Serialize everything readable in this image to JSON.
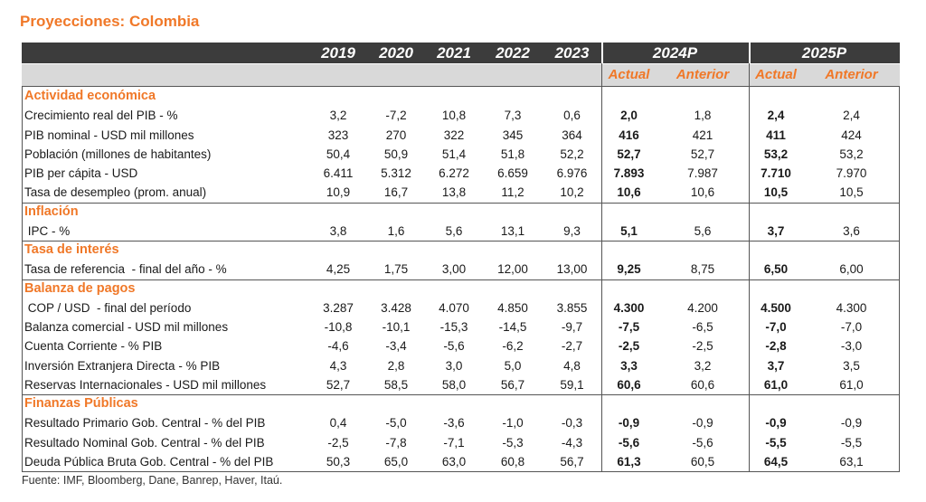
{
  "title": "Proyecciones: Colombia",
  "header": {
    "years": [
      "2019",
      "2020",
      "2021",
      "2022",
      "2023"
    ],
    "projection_years": [
      "2024P",
      "2025P"
    ],
    "subcolumns": [
      "Actual",
      "Anterior",
      "Actual",
      "Anterior"
    ]
  },
  "sections": [
    {
      "title": "Actividad económica",
      "rows": [
        {
          "label": "Crecimiento real del PIB - %",
          "values": [
            "3,2",
            "-7,2",
            "10,8",
            "7,3",
            "0,6",
            "2,0",
            "1,8",
            "2,4",
            "2,4"
          ]
        },
        {
          "label": "PIB nominal - USD mil millones",
          "values": [
            "323",
            "270",
            "322",
            "345",
            "364",
            "416",
            "421",
            "411",
            "424"
          ]
        },
        {
          "label": "Población (millones de habitantes)",
          "values": [
            "50,4",
            "50,9",
            "51,4",
            "51,8",
            "52,2",
            "52,7",
            "52,7",
            "53,2",
            "53,2"
          ]
        },
        {
          "label": "PIB per cápita - USD",
          "values": [
            "6.411",
            "5.312",
            "6.272",
            "6.659",
            "6.976",
            "7.893",
            "7.987",
            "7.710",
            "7.970"
          ]
        },
        {
          "label": "Tasa de desempleo (prom. anual)",
          "values": [
            "10,9",
            "16,7",
            "13,8",
            "11,2",
            "10,2",
            "10,6",
            "10,6",
            "10,5",
            "10,5"
          ]
        }
      ]
    },
    {
      "title": "Inflación",
      "rows": [
        {
          "label": " IPC - %",
          "values": [
            "3,8",
            "1,6",
            "5,6",
            "13,1",
            "9,3",
            "5,1",
            "5,6",
            "3,7",
            "3,6"
          ]
        }
      ]
    },
    {
      "title": "Tasa de interés",
      "rows": [
        {
          "label": "Tasa de referencia  - final del año - %",
          "values": [
            "4,25",
            "1,75",
            "3,00",
            "12,00",
            "13,00",
            "9,25",
            "8,75",
            "6,50",
            "6,00"
          ]
        }
      ]
    },
    {
      "title": "Balanza de pagos",
      "rows": [
        {
          "label": " COP / USD  - final del período",
          "values": [
            "3.287",
            "3.428",
            "4.070",
            "4.850",
            "3.855",
            "4.300",
            "4.200",
            "4.500",
            "4.300"
          ]
        },
        {
          "label": "Balanza comercial - USD mil millones",
          "values": [
            "-10,8",
            "-10,1",
            "-15,3",
            "-14,5",
            "-9,7",
            "-7,5",
            "-6,5",
            "-7,0",
            "-7,0"
          ]
        },
        {
          "label": "Cuenta Corriente - % PIB",
          "values": [
            "-4,6",
            "-3,4",
            "-5,6",
            "-6,2",
            "-2,7",
            "-2,5",
            "-2,5",
            "-2,8",
            "-3,0"
          ]
        },
        {
          "label": "Inversión Extranjera Directa - % PIB",
          "values": [
            "4,3",
            "2,8",
            "3,0",
            "5,0",
            "4,8",
            "3,3",
            "3,2",
            "3,7",
            "3,5"
          ]
        },
        {
          "label": "Reservas Internacionales - USD mil millones",
          "values": [
            "52,7",
            "58,5",
            "58,0",
            "56,7",
            "59,1",
            "60,6",
            "60,6",
            "61,0",
            "61,0"
          ]
        }
      ]
    },
    {
      "title": "Finanzas Públicas",
      "rows": [
        {
          "label": "Resultado Primario Gob. Central - % del PIB",
          "values": [
            "0,4",
            "-5,0",
            "-3,6",
            "-1,0",
            "-0,3",
            "-0,9",
            "-0,9",
            "-0,9",
            "-0,9"
          ]
        },
        {
          "label": "Resultado Nominal Gob. Central - % del PIB",
          "values": [
            "-2,5",
            "-7,8",
            "-7,1",
            "-5,3",
            "-4,3",
            "-5,6",
            "-5,6",
            "-5,5",
            "-5,5"
          ]
        },
        {
          "label": "Deuda Pública Bruta Gob. Central - % del PIB",
          "values": [
            "50,3",
            "65,0",
            "63,0",
            "60,8",
            "56,7",
            "61,3",
            "60,5",
            "64,5",
            "63,1"
          ]
        }
      ]
    }
  ],
  "source": "Fuente: IMF, Bloomberg, Dane, Banrep, Haver, Itaú.",
  "colors": {
    "accent": "#F07828",
    "header_bg": "#3C3C3C",
    "subheader_bg": "#D9D9D9"
  }
}
